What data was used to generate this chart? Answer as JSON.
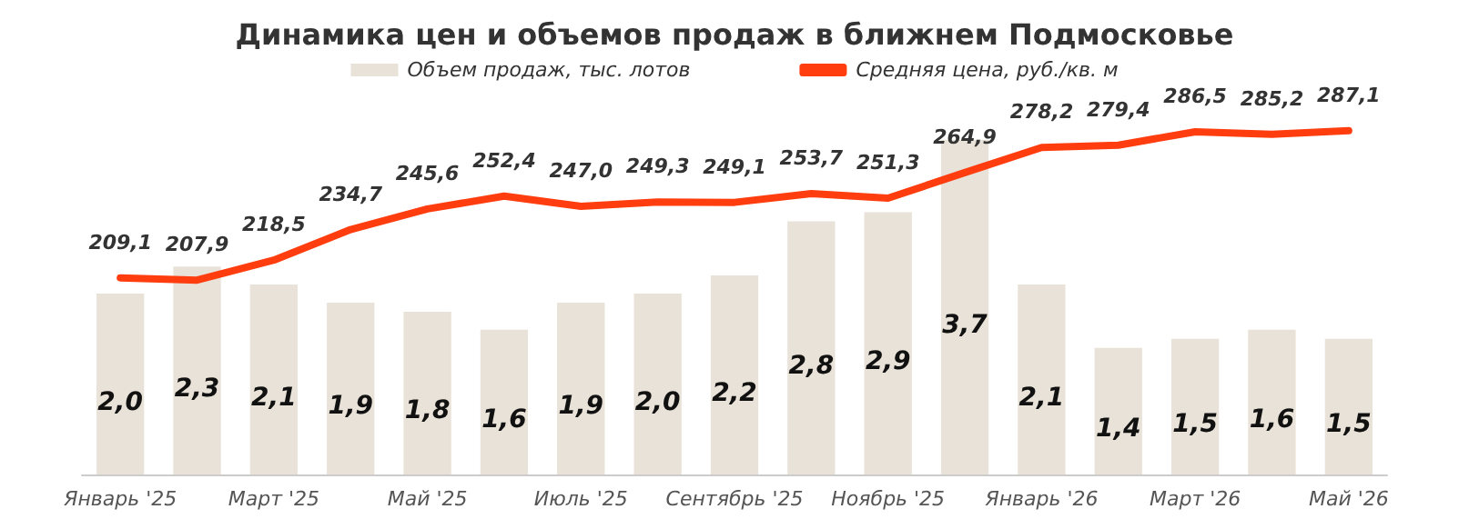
{
  "chart_data": {
    "type": "bar",
    "title": "Динамика цен и объемов продаж в ближнем Подмосковье",
    "categories": [
      "Январь '25",
      null,
      "Март '25",
      null,
      "Май '25",
      null,
      "Июль '25",
      null,
      "Сентябрь '25",
      null,
      "Ноябрь '25",
      null,
      "Январь '26",
      null,
      "Март '26",
      null,
      "Май '26"
    ],
    "series": [
      {
        "name": "Объем продаж, тыс. лотов",
        "color": "#e8e2d8",
        "values": [
          2.0,
          2.3,
          2.1,
          1.9,
          1.8,
          1.6,
          1.9,
          2.0,
          2.2,
          2.8,
          2.9,
          3.7,
          2.1,
          1.4,
          1.5,
          1.6,
          1.5
        ],
        "value_labels": [
          "2,0",
          "2,3",
          "2,1",
          "1,9",
          "1,8",
          "1,6",
          "1,9",
          "2,0",
          "2,2",
          "2,8",
          "2,9",
          "3,7",
          "2,1",
          "1,4",
          "1,5",
          "1,6",
          "1,5"
        ]
      },
      {
        "name": "Средняя цена, руб./кв. м",
        "type": "line",
        "axis": "y2",
        "color": "#ff3d0f",
        "values": [
          209.1,
          207.9,
          218.5,
          234.7,
          245.6,
          252.4,
          247.0,
          249.3,
          249.1,
          253.7,
          251.3,
          264.9,
          278.2,
          279.4,
          286.5,
          285.2,
          287.1
        ],
        "value_labels": [
          "209,1",
          "207,9",
          "218,5",
          "234,7",
          "245,6",
          "252,4",
          "247,0",
          "249,3",
          "249,1",
          "253,7",
          "251,3",
          "264,9",
          "278,2",
          "279,4",
          "286,5",
          "285,2",
          "287,1"
        ]
      }
    ],
    "legend": "top",
    "grid": false,
    "marker": "none",
    "line_style": "solid"
  }
}
